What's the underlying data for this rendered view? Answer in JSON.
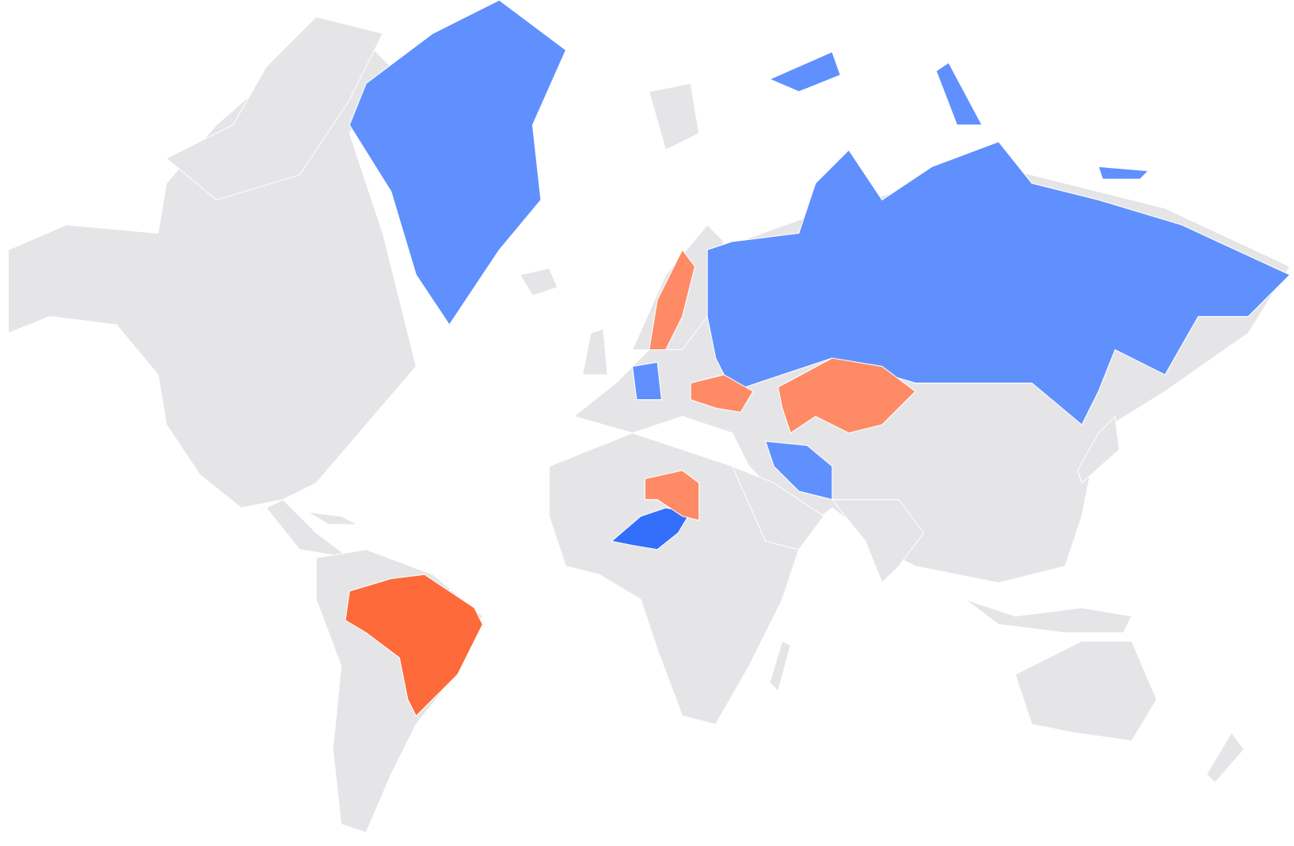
{
  "map": {
    "background": "#ffffff",
    "land_color": "#e5e5e8",
    "highlight_colors": [
      "#5f90fe",
      "#336ffb",
      "#fe8a66",
      "#fe6a3a"
    ]
  }
}
